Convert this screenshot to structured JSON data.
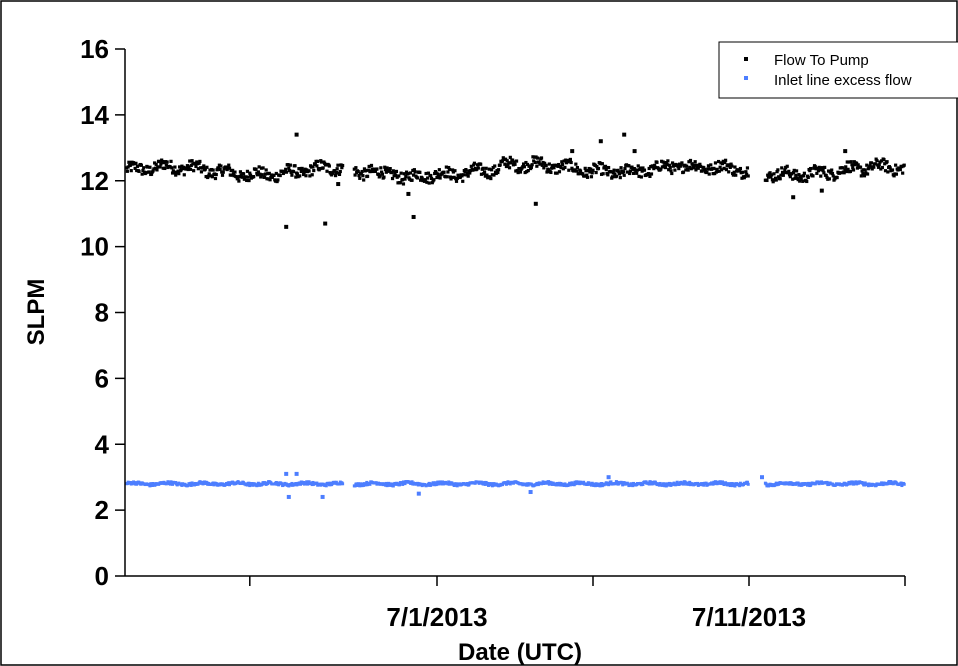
{
  "chart_data": {
    "type": "scatter",
    "title": "",
    "xlabel": "Date (UTC)",
    "ylabel": "SLPM",
    "xlim": [
      "2013-06-21",
      "2013-07-16"
    ],
    "ylim": [
      0,
      16
    ],
    "x_ticks": [
      {
        "date": "2013-06-25",
        "label": ""
      },
      {
        "date": "2013-07-01",
        "label": "7/1/2013"
      },
      {
        "date": "2013-07-06",
        "label": ""
      },
      {
        "date": "2013-07-11",
        "label": "7/11/2013"
      },
      {
        "date": "2013-07-16",
        "label": ""
      }
    ],
    "y_ticks": [
      0,
      2,
      4,
      6,
      8,
      10,
      12,
      14,
      16
    ],
    "grid": false,
    "legend_position": "top-right",
    "series": [
      {
        "name": "Flow To Pump",
        "color": "#000000",
        "marker": "square",
        "typical_value": 12.3,
        "data_gaps": [
          [
            "2013-06-28",
            "2013-06-28T08:00"
          ],
          [
            "2013-07-11",
            "2013-07-11T12:00"
          ]
        ],
        "outliers": [
          [
            "2013-06-26T12:00",
            13.4
          ],
          [
            "2013-06-26T04:00",
            10.6
          ],
          [
            "2013-06-27T10:00",
            10.7
          ],
          [
            "2013-06-30T02:00",
            11.6
          ],
          [
            "2013-06-30T06:00",
            10.9
          ],
          [
            "2013-07-04T04:00",
            11.3
          ],
          [
            "2013-07-05T08:00",
            12.9
          ],
          [
            "2013-07-06T06:00",
            13.2
          ],
          [
            "2013-07-07T00:00",
            13.4
          ],
          [
            "2013-07-07T08:00",
            12.9
          ],
          [
            "2013-07-12T10:00",
            11.5
          ],
          [
            "2013-07-14T02:00",
            12.9
          ],
          [
            "2013-07-13T08:00",
            11.7
          ],
          [
            "2013-06-27T20:00",
            11.9
          ]
        ]
      },
      {
        "name": "Inlet line excess flow",
        "color": "#4d7eff",
        "marker": "square",
        "typical_value": 2.8,
        "data_gaps": [
          [
            "2013-06-28",
            "2013-06-28T08:00"
          ],
          [
            "2013-07-11",
            "2013-07-11T12:00"
          ]
        ],
        "outliers": [
          [
            "2013-06-26T04:00",
            3.1
          ],
          [
            "2013-06-26T12:00",
            3.1
          ],
          [
            "2013-06-26T06:00",
            2.4
          ],
          [
            "2013-06-27T08:00",
            2.4
          ],
          [
            "2013-06-30T10:00",
            2.5
          ],
          [
            "2013-07-04T00:00",
            2.55
          ],
          [
            "2013-07-06T12:00",
            3.0
          ],
          [
            "2013-07-11T10:00",
            3.0
          ]
        ]
      }
    ]
  }
}
